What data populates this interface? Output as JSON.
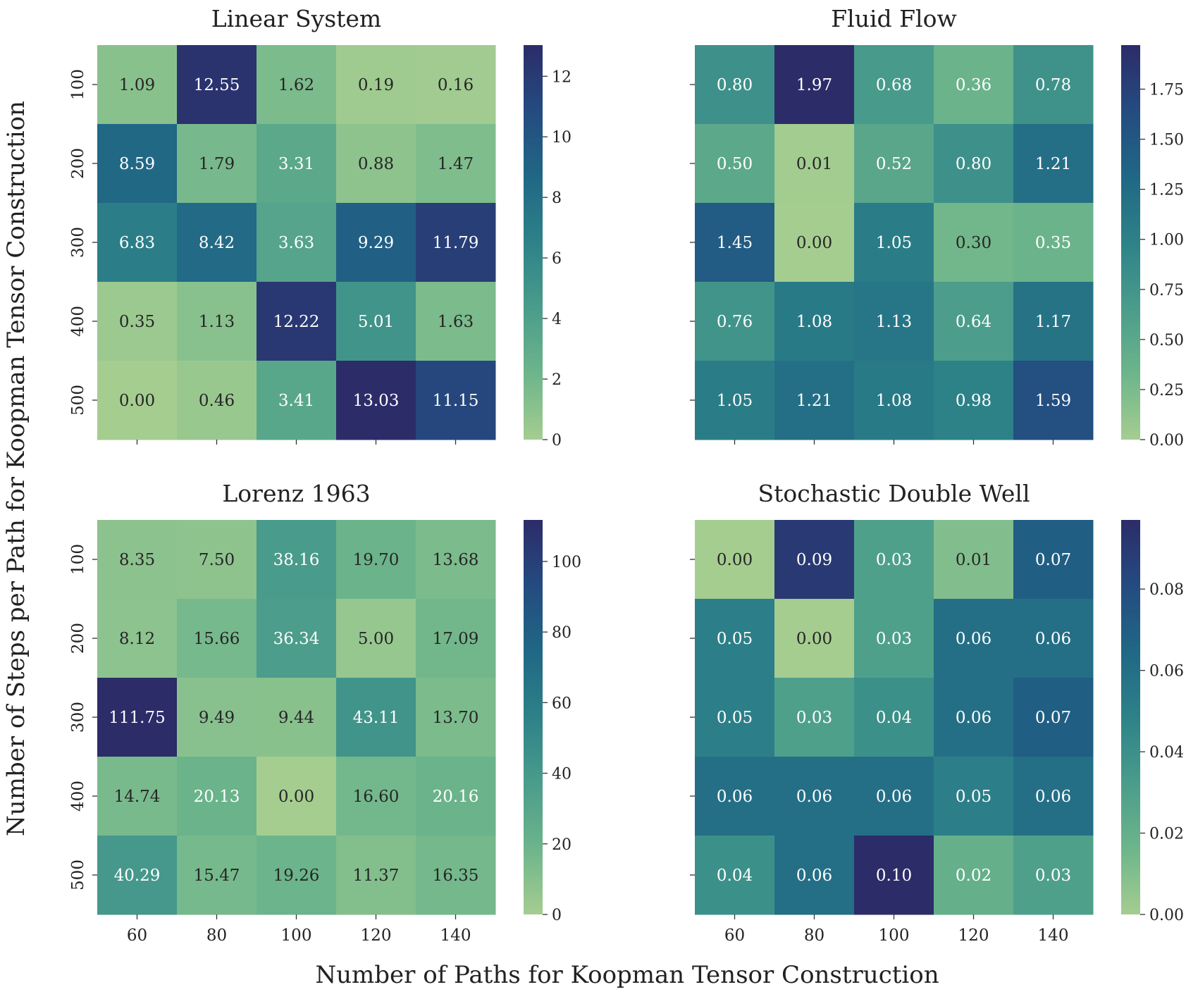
{
  "figure": {
    "xlabel": "Number of Paths for Koopman Tensor Construction",
    "ylabel": "Number of Steps per Path for Koopman Tensor Construction"
  },
  "chart_data": [
    {
      "type": "heatmap",
      "title": "Linear System",
      "x": [
        "60",
        "80",
        "100",
        "120",
        "140"
      ],
      "y": [
        "100",
        "200",
        "300",
        "400",
        "500"
      ],
      "values": [
        [
          1.09,
          12.55,
          1.62,
          0.19,
          0.16
        ],
        [
          8.59,
          1.79,
          3.31,
          0.88,
          1.47
        ],
        [
          6.83,
          8.42,
          3.63,
          9.29,
          11.79
        ],
        [
          0.35,
          1.13,
          12.22,
          5.01,
          1.63
        ],
        [
          0.0,
          0.46,
          3.41,
          13.03,
          11.15
        ]
      ],
      "vmin": 0,
      "vmax": 13.03,
      "colorbar_ticks": [
        0,
        2,
        4,
        6,
        8,
        10,
        12
      ],
      "colorbar_tick_labels": [
        "0",
        "2",
        "4",
        "6",
        "8",
        "10",
        "12"
      ],
      "show_xticklabels": false,
      "show_yticklabels": true
    },
    {
      "type": "heatmap",
      "title": "Fluid Flow",
      "x": [
        "60",
        "80",
        "100",
        "120",
        "140"
      ],
      "y": [
        "100",
        "200",
        "300",
        "400",
        "500"
      ],
      "values": [
        [
          0.8,
          1.97,
          0.68,
          0.36,
          0.78
        ],
        [
          0.5,
          0.01,
          0.52,
          0.8,
          1.21
        ],
        [
          1.45,
          0.0,
          1.05,
          0.3,
          0.35
        ],
        [
          0.76,
          1.08,
          1.13,
          0.64,
          1.17
        ],
        [
          1.05,
          1.21,
          1.08,
          0.98,
          1.59
        ]
      ],
      "vmin": 0,
      "vmax": 1.97,
      "colorbar_ticks": [
        0,
        0.25,
        0.5,
        0.75,
        1.0,
        1.25,
        1.5,
        1.75
      ],
      "colorbar_tick_labels": [
        "0.00",
        "0.25",
        "0.50",
        "0.75",
        "1.00",
        "1.25",
        "1.50",
        "1.75"
      ],
      "show_xticklabels": false,
      "show_yticklabels": false
    },
    {
      "type": "heatmap",
      "title": "Lorenz 1963",
      "x": [
        "60",
        "80",
        "100",
        "120",
        "140"
      ],
      "y": [
        "100",
        "200",
        "300",
        "400",
        "500"
      ],
      "values": [
        [
          8.35,
          7.5,
          38.16,
          19.7,
          13.68
        ],
        [
          8.12,
          15.66,
          36.34,
          5.0,
          17.09
        ],
        [
          111.75,
          9.49,
          9.44,
          43.11,
          13.7
        ],
        [
          14.74,
          20.13,
          0.0,
          16.6,
          20.16
        ],
        [
          40.29,
          15.47,
          19.26,
          11.37,
          16.35
        ]
      ],
      "vmin": 0,
      "vmax": 111.75,
      "colorbar_ticks": [
        0,
        20,
        40,
        60,
        80,
        100
      ],
      "colorbar_tick_labels": [
        "0",
        "20",
        "40",
        "60",
        "80",
        "100"
      ],
      "show_xticklabels": true,
      "show_yticklabels": true
    },
    {
      "type": "heatmap",
      "title": "Stochastic Double Well",
      "x": [
        "60",
        "80",
        "100",
        "120",
        "140"
      ],
      "y": [
        "100",
        "200",
        "300",
        "400",
        "500"
      ],
      "values": [
        [
          0.0,
          0.09,
          0.03,
          0.01,
          0.07
        ],
        [
          0.05,
          0.0,
          0.03,
          0.06,
          0.06
        ],
        [
          0.05,
          0.03,
          0.04,
          0.06,
          0.07
        ],
        [
          0.06,
          0.06,
          0.06,
          0.05,
          0.06
        ],
        [
          0.04,
          0.06,
          0.1,
          0.02,
          0.03
        ]
      ],
      "vmin": 0,
      "vmax": 0.097,
      "colorbar_ticks": [
        0,
        0.02,
        0.04,
        0.06,
        0.08
      ],
      "colorbar_tick_labels": [
        "0.00",
        "0.02",
        "0.04",
        "0.06",
        "0.08"
      ],
      "show_xticklabels": true,
      "show_yticklabels": false
    }
  ],
  "colormap": {
    "name": "crest",
    "stops": [
      "#a5cd90",
      "#6db58b",
      "#4a9c8b",
      "#2d8288",
      "#206785",
      "#244b80",
      "#2c2c69"
    ]
  }
}
